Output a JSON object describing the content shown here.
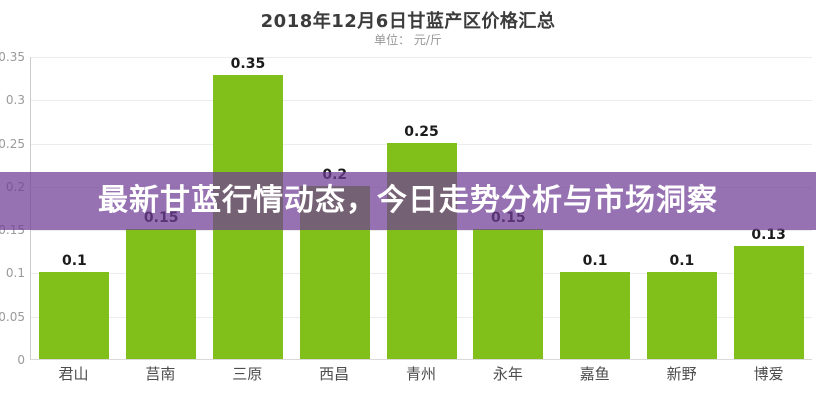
{
  "header": {
    "title": "2018年12月6日甘蓝产区价格汇总",
    "subtitle": "单位： 元/斤"
  },
  "overlay_banner": {
    "text": "最新甘蓝行情动态，今日走势分析与市场洞察",
    "background_rgba": "rgba(112, 62, 150, 0.73)",
    "text_color": "#ffffff"
  },
  "colors": {
    "bar_green": "#81C01A",
    "title_text": "#3c3c3c",
    "subtitle_text": "#979797",
    "axis_tick_text": "#9a9a9a",
    "x_label_text": "#4d4d4d",
    "value_label_text": "#1c1c1c",
    "gridline": "#ececec",
    "banner_purple_over_white": "#9A7AB8"
  },
  "chart_data": {
    "type": "bar",
    "title": "2018年12月6日甘蓝产区价格汇总",
    "subtitle": "单位： 元/斤",
    "categories": [
      "君山",
      "莒南",
      "三原",
      "西昌",
      "青州",
      "永年",
      "嘉鱼",
      "新野",
      "博爱"
    ],
    "values": [
      0.1,
      0.15,
      0.35,
      0.2,
      0.25,
      0.15,
      0.1,
      0.1,
      0.13
    ],
    "value_labels": [
      "0.1",
      "0.15",
      "0.35",
      "0.2",
      "0.25",
      "0.15",
      "0.1",
      "0.1",
      "0.13"
    ],
    "xlabel": "",
    "ylabel": "",
    "unit": "元/斤",
    "ylim": [
      0,
      0.35
    ],
    "yticks": [
      0,
      0.05,
      0.1,
      0.15,
      0.2,
      0.25,
      0.3,
      0.35
    ],
    "ytick_labels": [
      "0",
      "0.05",
      "0.1",
      "0.15",
      "0.2",
      "0.25",
      "0.3",
      "0.35"
    ],
    "grid": true,
    "legend": null,
    "bar_color": "#81C01A"
  }
}
